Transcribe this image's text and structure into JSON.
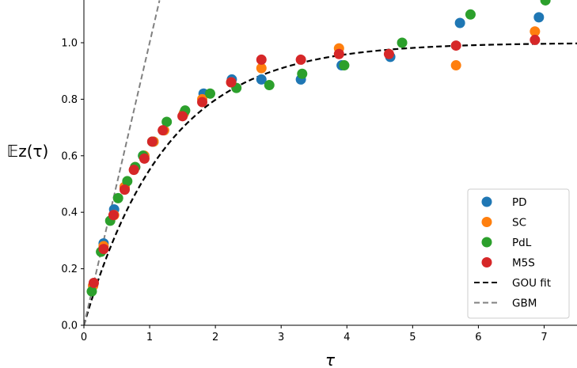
{
  "chart_data": {
    "type": "scatter",
    "xlabel": "τ",
    "ylabel": "𝔼z(τ)",
    "xlim": [
      0,
      7.5
    ],
    "ylim": [
      0,
      1.15
    ],
    "xticks": [
      "0",
      "1",
      "2",
      "3",
      "4",
      "5",
      "6",
      "7"
    ],
    "yticks": [
      "0.0",
      "0.2",
      "0.4",
      "0.6",
      "0.8",
      "1.0"
    ],
    "grid": false,
    "legend_position": "lower-right",
    "series": [
      {
        "name": "PD",
        "kind": "scatter",
        "color": "#1f77b4",
        "points": [
          [
            0.14,
            0.14
          ],
          [
            0.3,
            0.29
          ],
          [
            0.46,
            0.41
          ],
          [
            0.62,
            0.49
          ],
          [
            0.78,
            0.56
          ],
          [
            0.9,
            0.6
          ],
          [
            1.06,
            0.65
          ],
          [
            1.22,
            0.69
          ],
          [
            1.52,
            0.75
          ],
          [
            1.82,
            0.82
          ],
          [
            2.25,
            0.87
          ],
          [
            2.7,
            0.87
          ],
          [
            3.3,
            0.87
          ],
          [
            3.92,
            0.92
          ],
          [
            4.66,
            0.95
          ],
          [
            5.72,
            1.07
          ],
          [
            6.92,
            1.09
          ]
        ]
      },
      {
        "name": "SC",
        "kind": "scatter",
        "color": "#ff7f0e",
        "points": [
          [
            0.14,
            0.14
          ],
          [
            0.3,
            0.28
          ],
          [
            0.46,
            0.39
          ],
          [
            0.62,
            0.49
          ],
          [
            0.78,
            0.56
          ],
          [
            0.92,
            0.6
          ],
          [
            1.06,
            0.65
          ],
          [
            1.22,
            0.69
          ],
          [
            1.52,
            0.75
          ],
          [
            1.8,
            0.8
          ],
          [
            2.24,
            0.86
          ],
          [
            2.7,
            0.91
          ],
          [
            3.88,
            0.98
          ],
          [
            5.66,
            0.92
          ],
          [
            6.86,
            1.04
          ]
        ]
      },
      {
        "name": "PdL",
        "kind": "scatter",
        "color": "#2ca02c",
        "points": [
          [
            0.12,
            0.12
          ],
          [
            0.26,
            0.26
          ],
          [
            0.4,
            0.37
          ],
          [
            0.52,
            0.45
          ],
          [
            0.66,
            0.51
          ],
          [
            0.78,
            0.56
          ],
          [
            0.9,
            0.6
          ],
          [
            1.04,
            0.65
          ],
          [
            1.26,
            0.72
          ],
          [
            1.54,
            0.76
          ],
          [
            1.92,
            0.82
          ],
          [
            2.32,
            0.84
          ],
          [
            2.82,
            0.85
          ],
          [
            3.32,
            0.89
          ],
          [
            3.96,
            0.92
          ],
          [
            4.84,
            1.0
          ],
          [
            5.88,
            1.1
          ],
          [
            7.02,
            1.15
          ]
        ]
      },
      {
        "name": "M5S",
        "kind": "scatter",
        "color": "#d62728",
        "points": [
          [
            0.15,
            0.15
          ],
          [
            0.3,
            0.27
          ],
          [
            0.45,
            0.39
          ],
          [
            0.62,
            0.48
          ],
          [
            0.76,
            0.55
          ],
          [
            0.92,
            0.59
          ],
          [
            1.04,
            0.65
          ],
          [
            1.2,
            0.69
          ],
          [
            1.5,
            0.74
          ],
          [
            1.8,
            0.79
          ],
          [
            2.24,
            0.86
          ],
          [
            2.7,
            0.94
          ],
          [
            3.3,
            0.94
          ],
          [
            3.88,
            0.96
          ],
          [
            4.64,
            0.96
          ],
          [
            5.66,
            0.99
          ],
          [
            6.86,
            1.01
          ]
        ]
      },
      {
        "name": "GOU fit",
        "kind": "line",
        "style": "dashed",
        "color": "#000000",
        "function": "1 - exp(-x / 1.25)",
        "x_range": [
          0,
          7.5
        ]
      },
      {
        "name": "GBM",
        "kind": "line",
        "style": "dashed",
        "color": "#808080",
        "function": "x",
        "x_range": [
          0,
          1.15
        ]
      }
    ]
  }
}
